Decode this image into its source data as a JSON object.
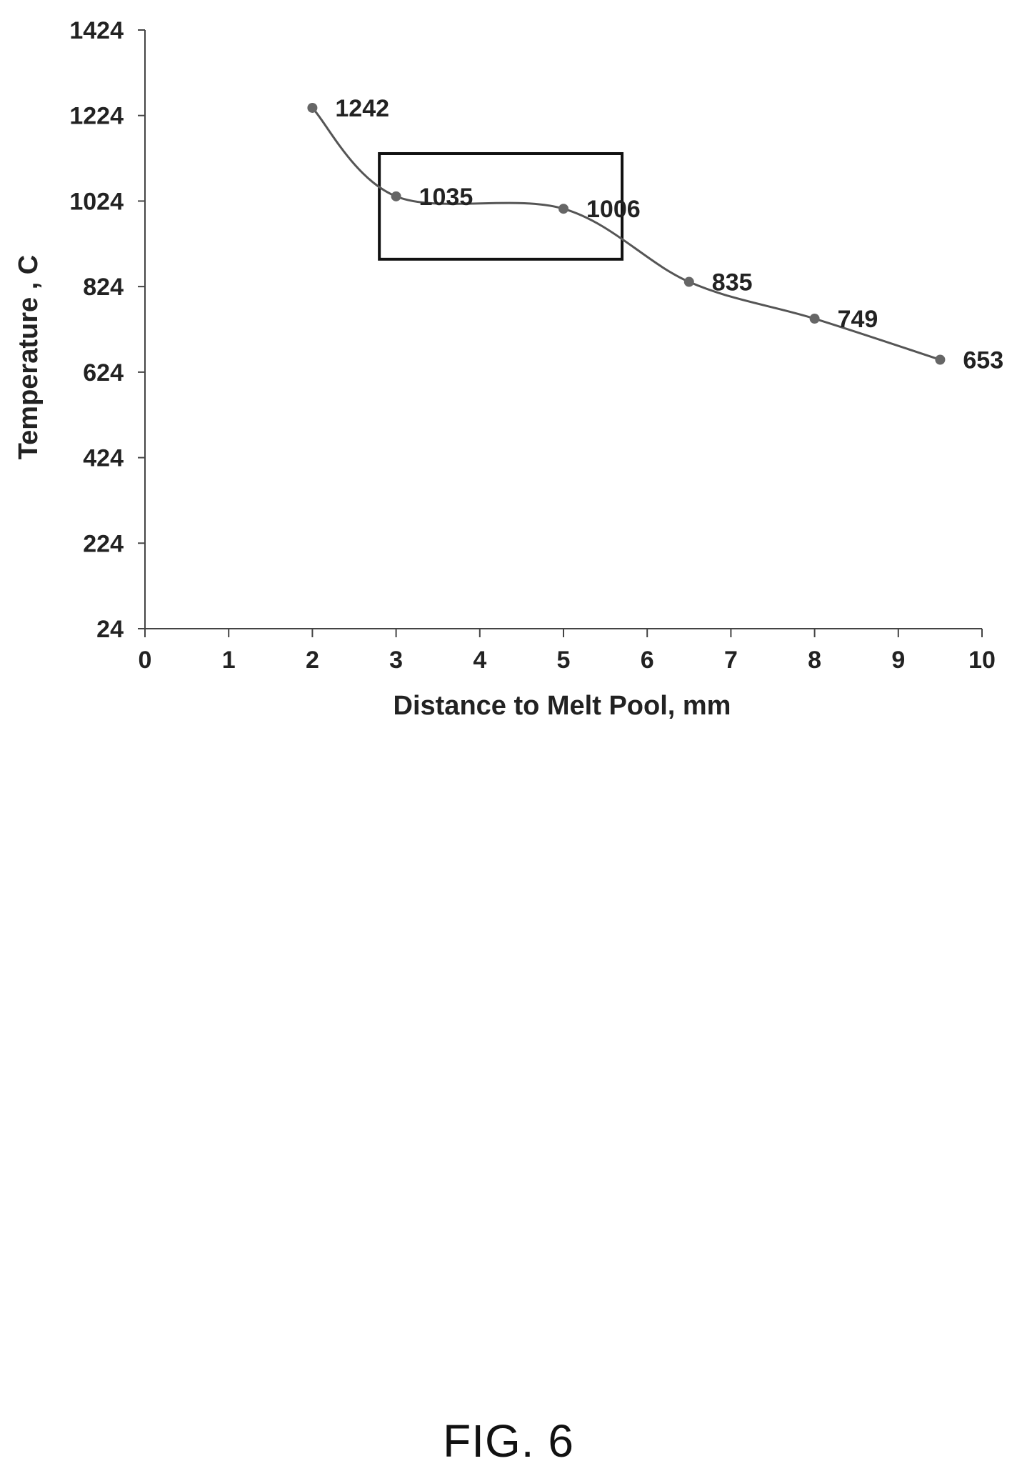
{
  "caption": "FIG. 6",
  "chart_data": {
    "type": "line",
    "xlabel": "Distance to Melt Pool, mm",
    "ylabel": "Temperature , C",
    "xlim": [
      0,
      10
    ],
    "ylim": [
      24,
      1424
    ],
    "xticks": [
      0,
      1,
      2,
      3,
      4,
      5,
      6,
      7,
      8,
      9,
      10
    ],
    "yticks": [
      24,
      224,
      424,
      624,
      824,
      1024,
      1224,
      1424
    ],
    "series": [
      {
        "x": [
          2,
          3,
          5,
          6.5,
          8,
          9.5
        ],
        "y": [
          1242,
          1035,
          1006,
          835,
          749,
          653
        ],
        "labels": [
          "1242",
          "1035",
          "1006",
          "835",
          "749",
          "653"
        ]
      }
    ],
    "highlight_box": {
      "x": [
        2.8,
        5.7
      ],
      "y": [
        888,
        1135
      ]
    },
    "grid": false,
    "legend": "none"
  }
}
